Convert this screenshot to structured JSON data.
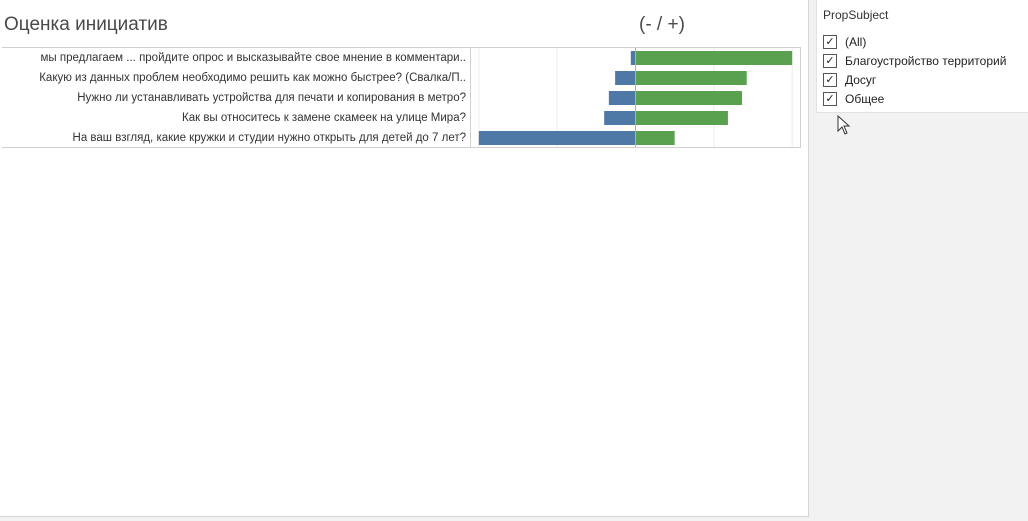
{
  "title": "Оценка инициатив",
  "axis_title": "(- / +)",
  "colors": {
    "negative": "#4e79a7",
    "positive": "#59a14f",
    "gridline": "#ececec",
    "zero_line": "#b0b0b0"
  },
  "chart_data": {
    "type": "bar",
    "orientation": "horizontal-diverging",
    "categories": [
      "мы предлагаем ... пройдите опрос и высказывайте свое мнение в комментари..",
      "Какую из данных проблем необходимо решить как можно быстрее? (Свалка/П..",
      "Нужно ли устанавливать устройства для печати и копирования в метро?",
      "Как вы относитесь к замене скамеек на улице Мира?",
      "На ваш взгляд, какие кружки и студии нужно открыть для детей до 7 лет?"
    ],
    "negative_values": [
      -0.03,
      -0.13,
      -0.17,
      -0.2,
      -1.0
    ],
    "positive_values": [
      1.0,
      0.71,
      0.68,
      0.59,
      0.25
    ],
    "xlim": [
      -1.05,
      1.05
    ],
    "grid": true
  },
  "filter": {
    "title": "PropSubject",
    "items": [
      {
        "label": "(All)",
        "checked": "✓"
      },
      {
        "label": "Благоустройство территорий",
        "checked": "✓"
      },
      {
        "label": "Досуг",
        "checked": "✓"
      },
      {
        "label": "Общее",
        "checked": "✓"
      }
    ]
  }
}
